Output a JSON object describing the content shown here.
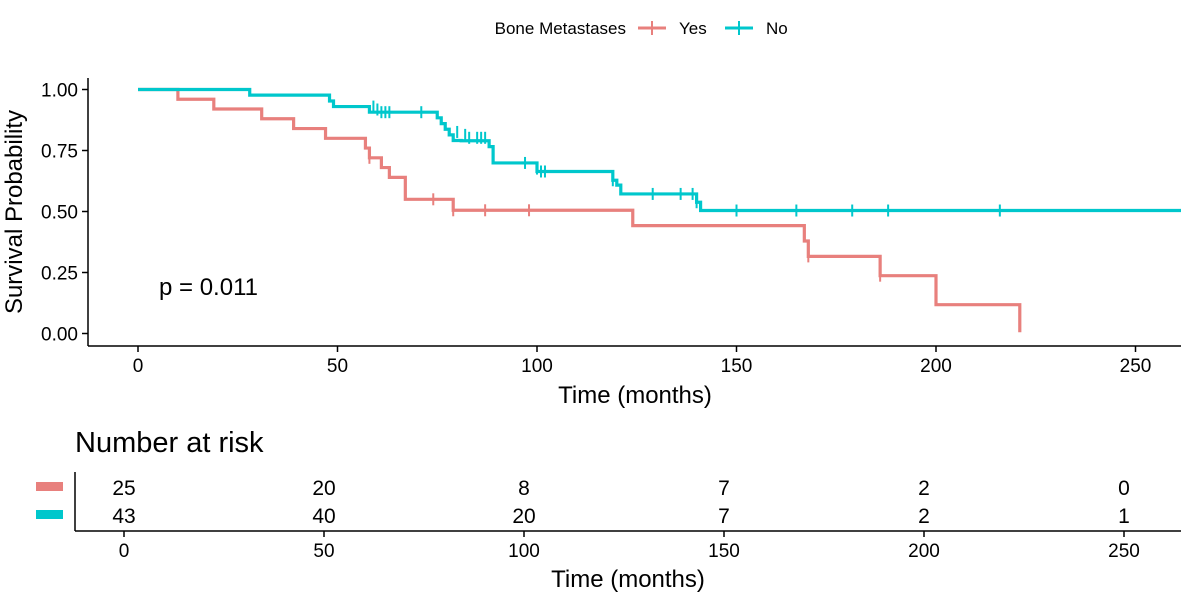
{
  "chart_data": {
    "type": "line",
    "subtype": "kaplan-meier",
    "legend": {
      "title": "Bone Metastases",
      "placement": "top-center",
      "entries": [
        {
          "label": "Yes",
          "color": "#E8807D"
        },
        {
          "label": "No",
          "color": "#00C7CC"
        }
      ]
    },
    "xlabel": "Time (months)",
    "ylabel": "Survival Probability",
    "xlim": [
      0,
      262
    ],
    "ylim": [
      0,
      1
    ],
    "xticks": [
      0,
      50,
      100,
      150,
      200,
      250
    ],
    "xtick_labels": [
      "0",
      "50",
      "100",
      "150",
      "200",
      "250"
    ],
    "yticks": [
      0,
      0.25,
      0.5,
      0.75,
      1
    ],
    "ytick_labels": [
      "0.00",
      "0.25",
      "0.50",
      "0.75",
      "1.00"
    ],
    "pvalue_label": "p = 0.011",
    "series": [
      {
        "name": "Yes",
        "color": "#E8807D",
        "steps": [
          [
            0,
            1.0
          ],
          [
            10,
            0.96
          ],
          [
            19,
            0.92
          ],
          [
            31,
            0.88
          ],
          [
            39,
            0.84
          ],
          [
            47,
            0.8
          ],
          [
            57,
            0.76
          ],
          [
            58,
            0.72
          ],
          [
            61,
            0.68
          ],
          [
            63,
            0.64
          ],
          [
            67,
            0.55
          ],
          [
            79,
            0.505
          ],
          [
            124,
            0.442
          ],
          [
            167,
            0.379
          ],
          [
            168,
            0.316
          ],
          [
            186,
            0.237
          ],
          [
            200,
            0.118
          ],
          [
            221,
            0.005
          ]
        ],
        "end_x": 221,
        "censored": [
          [
            58,
            0.72
          ],
          [
            74,
            0.55
          ],
          [
            79,
            0.505
          ],
          [
            87,
            0.505
          ],
          [
            98,
            0.505
          ],
          [
            168,
            0.316
          ],
          [
            186,
            0.237
          ]
        ]
      },
      {
        "name": "No",
        "color": "#00C7CC",
        "steps": [
          [
            0,
            1.0
          ],
          [
            28,
            0.977
          ],
          [
            48,
            0.953
          ],
          [
            49,
            0.93
          ],
          [
            58,
            0.907
          ],
          [
            75,
            0.884
          ],
          [
            76,
            0.86
          ],
          [
            77,
            0.837
          ],
          [
            78,
            0.814
          ],
          [
            79,
            0.791
          ],
          [
            81,
            0.79
          ],
          [
            88,
            0.766
          ],
          [
            89,
            0.699
          ],
          [
            100,
            0.664
          ],
          [
            119,
            0.628
          ],
          [
            120,
            0.608
          ],
          [
            121,
            0.572
          ],
          [
            140,
            0.538
          ],
          [
            141,
            0.504
          ]
        ],
        "end_x": 262,
        "censored": [
          [
            59,
            0.93
          ],
          [
            60,
            0.918
          ],
          [
            61,
            0.907
          ],
          [
            62,
            0.907
          ],
          [
            63,
            0.907
          ],
          [
            71,
            0.907
          ],
          [
            80,
            0.826
          ],
          [
            82,
            0.814
          ],
          [
            83,
            0.802
          ],
          [
            85,
            0.802
          ],
          [
            86,
            0.802
          ],
          [
            87,
            0.802
          ],
          [
            97,
            0.699
          ],
          [
            100,
            0.676
          ],
          [
            101,
            0.664
          ],
          [
            102,
            0.664
          ],
          [
            119,
            0.628
          ],
          [
            129,
            0.572
          ],
          [
            136,
            0.572
          ],
          [
            139,
            0.572
          ],
          [
            140,
            0.538
          ],
          [
            150,
            0.504
          ],
          [
            165,
            0.504
          ],
          [
            179,
            0.504
          ],
          [
            188,
            0.504
          ],
          [
            216,
            0.504
          ]
        ]
      }
    ]
  },
  "risk_table": {
    "title": "Number at risk",
    "xlabel": "Time (months)",
    "times": [
      0,
      50,
      100,
      150,
      200,
      250
    ],
    "time_labels": [
      "0",
      "50",
      "100",
      "150",
      "200",
      "250"
    ],
    "rows": [
      {
        "name": "Yes",
        "color": "#E8807D",
        "counts": [
          "25",
          "20",
          "8",
          "7",
          "2",
          "0"
        ]
      },
      {
        "name": "No",
        "color": "#00C7CC",
        "counts": [
          "43",
          "40",
          "20",
          "7",
          "2",
          "1"
        ]
      }
    ]
  }
}
